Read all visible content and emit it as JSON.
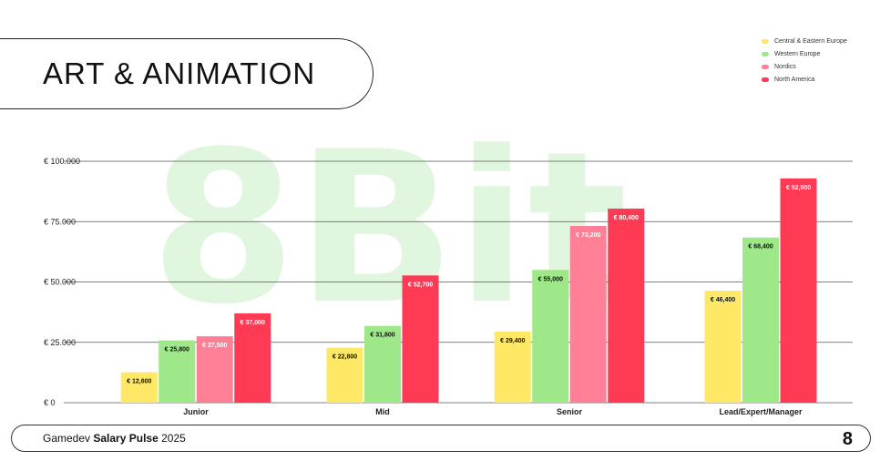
{
  "header": {
    "title": "ART & ANIMATION"
  },
  "footer": {
    "prefix": "Gamedev",
    "bold": "Salary Pulse",
    "suffix": "2025",
    "logo": "8"
  },
  "watermark": {
    "text": "8Bit"
  },
  "colors": {
    "Central & Eastern Europe": "#ffe866",
    "Western Europe": "#9fe88a",
    "Nordics": "#ff8096",
    "North America": "#ff3a55",
    "grid": "#555555"
  },
  "chart_data": {
    "type": "bar",
    "title": "ART & ANIMATION",
    "categories": [
      "Junior",
      "Mid",
      "Senior",
      "Lead/Expert/Manager"
    ],
    "ylim": [
      0,
      100000
    ],
    "yticks": [
      0,
      25000,
      50000,
      75000,
      100000
    ],
    "ytick_labels": [
      "€ 0",
      "€ 25.000",
      "€ 50.000",
      "€ 75.000",
      "€ 100.000"
    ],
    "legend_position": "top-right",
    "grid": true,
    "series": [
      {
        "name": "Central & Eastern Europe",
        "values": [
          12600,
          22800,
          29400,
          46400
        ],
        "labels": [
          "€ 12,600",
          "€ 22,800",
          "€ 29,400",
          "€ 46,400"
        ]
      },
      {
        "name": "Western Europe",
        "values": [
          25800,
          31800,
          55000,
          68400
        ],
        "labels": [
          "€ 25,800",
          "€ 31,800",
          "€ 55,000",
          "€ 68,400"
        ]
      },
      {
        "name": "Nordics",
        "values": [
          27500,
          null,
          73200,
          null
        ],
        "labels": [
          "€ 27,500",
          "",
          "€ 73,200",
          ""
        ]
      },
      {
        "name": "North America",
        "values": [
          37000,
          52700,
          80400,
          92900
        ],
        "labels": [
          "€ 37,000",
          "€ 52,700",
          "€ 80,400",
          "€ 92,900"
        ]
      }
    ]
  }
}
